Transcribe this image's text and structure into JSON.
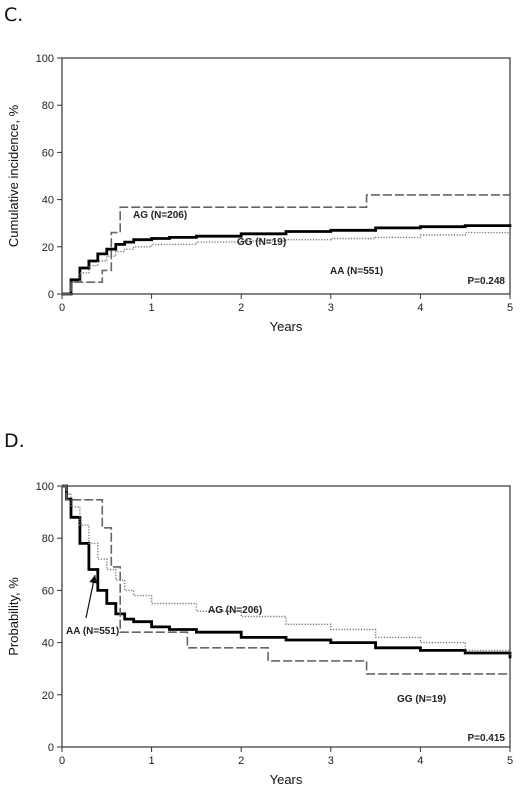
{
  "chart_data": [
    {
      "panel": "C.",
      "type": "line",
      "step": true,
      "xlabel": "Years",
      "ylabel": "Cumulative incidence, %",
      "xlim": [
        0,
        5
      ],
      "ylim": [
        0,
        100
      ],
      "xticks": [
        0,
        1,
        2,
        3,
        4,
        5
      ],
      "yticks": [
        0,
        20,
        40,
        60,
        80,
        100
      ],
      "grid": false,
      "pvalue": "P=0.248",
      "series": [
        {
          "name": "AA (N=551)",
          "style": "solid-thick",
          "color": "#000000",
          "x": [
            0,
            0.1,
            0.2,
            0.3,
            0.4,
            0.5,
            0.6,
            0.7,
            0.8,
            1.0,
            1.2,
            1.5,
            2.0,
            2.5,
            3.0,
            3.5,
            4.0,
            4.5,
            5.0
          ],
          "y": [
            0,
            6,
            11,
            14,
            17,
            19,
            21,
            22,
            23,
            23.5,
            24,
            24.5,
            25.5,
            26.5,
            27,
            28,
            28.5,
            29,
            29.5
          ]
        },
        {
          "name": "AG (N=206)",
          "style": "dotted",
          "color": "#777777",
          "x": [
            0,
            0.1,
            0.2,
            0.3,
            0.4,
            0.5,
            0.6,
            0.7,
            0.8,
            1.0,
            1.5,
            2.0,
            2.5,
            3.0,
            3.5,
            4.0,
            4.5,
            5.0
          ],
          "y": [
            0,
            5,
            9,
            12,
            14,
            16,
            18,
            19,
            20,
            21,
            22,
            22.5,
            23,
            23.5,
            24,
            25,
            26,
            26.5
          ]
        },
        {
          "name": "GG (N=19)",
          "style": "dashed",
          "color": "#666666",
          "x": [
            0,
            0.1,
            0.45,
            0.55,
            0.65,
            3.4,
            5.0
          ],
          "y": [
            0,
            5,
            10,
            26,
            36.8,
            42,
            42
          ]
        }
      ],
      "annotations": [
        "GG (N=19)",
        "AA (N=551)",
        "AG (N=206)"
      ]
    },
    {
      "panel": "D.",
      "type": "line",
      "step": true,
      "xlabel": "Years",
      "ylabel": "Probability, %",
      "xlim": [
        0,
        5
      ],
      "ylim": [
        0,
        100
      ],
      "xticks": [
        0,
        1,
        2,
        3,
        4,
        5
      ],
      "yticks": [
        0,
        20,
        40,
        60,
        80,
        100
      ],
      "grid": false,
      "pvalue": "P=0.415",
      "series": [
        {
          "name": "AA (N=551)",
          "style": "solid-thick",
          "color": "#000000",
          "x": [
            0,
            0.05,
            0.1,
            0.2,
            0.3,
            0.4,
            0.5,
            0.6,
            0.7,
            0.8,
            1.0,
            1.2,
            1.5,
            2.0,
            2.5,
            3.0,
            3.5,
            4.0,
            4.5,
            5.0
          ],
          "y": [
            100,
            95,
            88,
            78,
            68,
            60,
            55,
            51,
            49,
            48,
            46,
            45,
            44,
            42,
            41,
            40,
            38,
            37,
            36,
            34
          ]
        },
        {
          "name": "AG (N=206)",
          "style": "dotted",
          "color": "#777777",
          "x": [
            0,
            0.05,
            0.1,
            0.2,
            0.3,
            0.4,
            0.5,
            0.6,
            0.7,
            0.8,
            1.0,
            1.5,
            2.0,
            2.5,
            3.0,
            3.5,
            4.0,
            4.5,
            5.0
          ],
          "y": [
            100,
            97,
            92,
            85,
            78,
            72,
            68,
            64,
            60,
            58,
            55,
            52,
            50,
            47,
            45,
            42,
            40,
            37,
            35
          ]
        },
        {
          "name": "GG (N=19)",
          "style": "dashed",
          "color": "#666666",
          "x": [
            0,
            0.05,
            0.45,
            0.55,
            0.65,
            1.4,
            2.3,
            3.4,
            5.0
          ],
          "y": [
            100,
            94.7,
            84,
            69,
            44,
            38,
            33,
            28,
            28
          ]
        }
      ],
      "annotations": [
        "AG (N=206)",
        "AA (N=551)",
        "GG (N=19)"
      ]
    }
  ]
}
